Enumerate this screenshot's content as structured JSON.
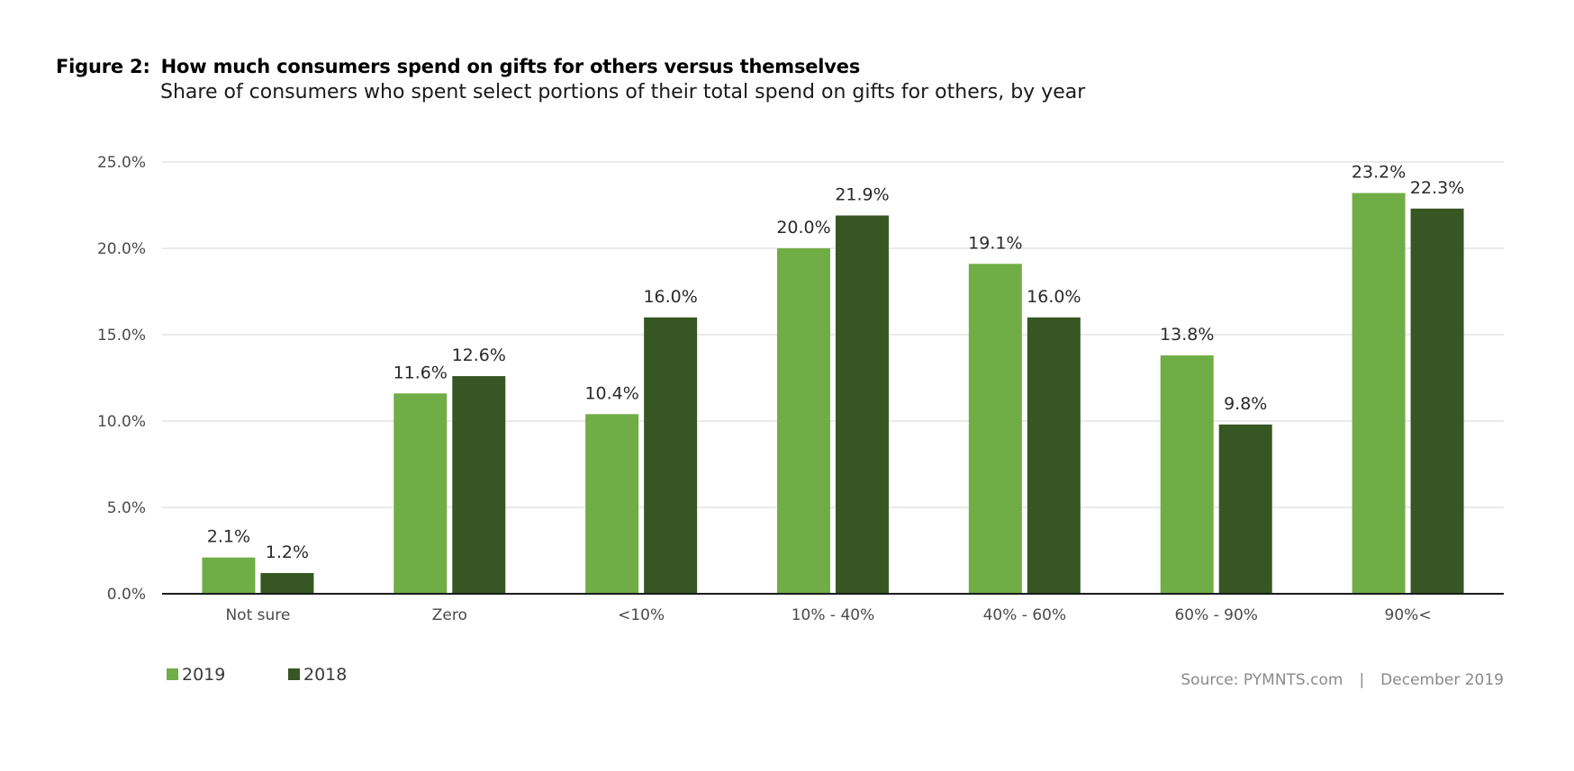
{
  "header": {
    "figure_label": "Figure 2:",
    "title": "How much consumers spend on gifts for others versus themselves",
    "subtitle": "Share of consumers who spent select portions of their total spend on gifts for others, by year"
  },
  "footer": {
    "source": "Source: PYMNTS.com",
    "separator": "|",
    "date": "December 2019"
  },
  "chart_data": {
    "type": "bar",
    "title": "How much consumers spend on gifts for others versus themselves",
    "subtitle": "Share of consumers who spent select portions of their total spend on gifts for others, by year",
    "categories": [
      "Not sure",
      "Zero",
      "<10%",
      "10% - 40%",
      "40% - 60%",
      "60% - 90%",
      "90%<"
    ],
    "series": [
      {
        "name": "2019",
        "color": "#70ad47",
        "values": [
          2.1,
          11.6,
          10.4,
          20.0,
          19.1,
          13.8,
          23.2
        ],
        "labels": [
          "2.1%",
          "11.6%",
          "10.4%",
          "20.0%",
          "19.1%",
          "13.8%",
          "23.2%"
        ]
      },
      {
        "name": "2018",
        "color": "#375623",
        "values": [
          1.2,
          12.6,
          16.0,
          21.9,
          16.0,
          9.8,
          22.3
        ],
        "labels": [
          "1.2%",
          "12.6%",
          "16.0%",
          "21.9%",
          "16.0%",
          "9.8%",
          "22.3%"
        ]
      }
    ],
    "yticks": [
      0,
      5,
      10,
      15,
      20,
      25
    ],
    "ytick_labels": [
      "0.0%",
      "5.0%",
      "10.0%",
      "15.0%",
      "20.0%",
      "25.0%"
    ],
    "ylim": [
      0,
      25
    ],
    "grid": true,
    "legend_position": "bottom-left"
  }
}
